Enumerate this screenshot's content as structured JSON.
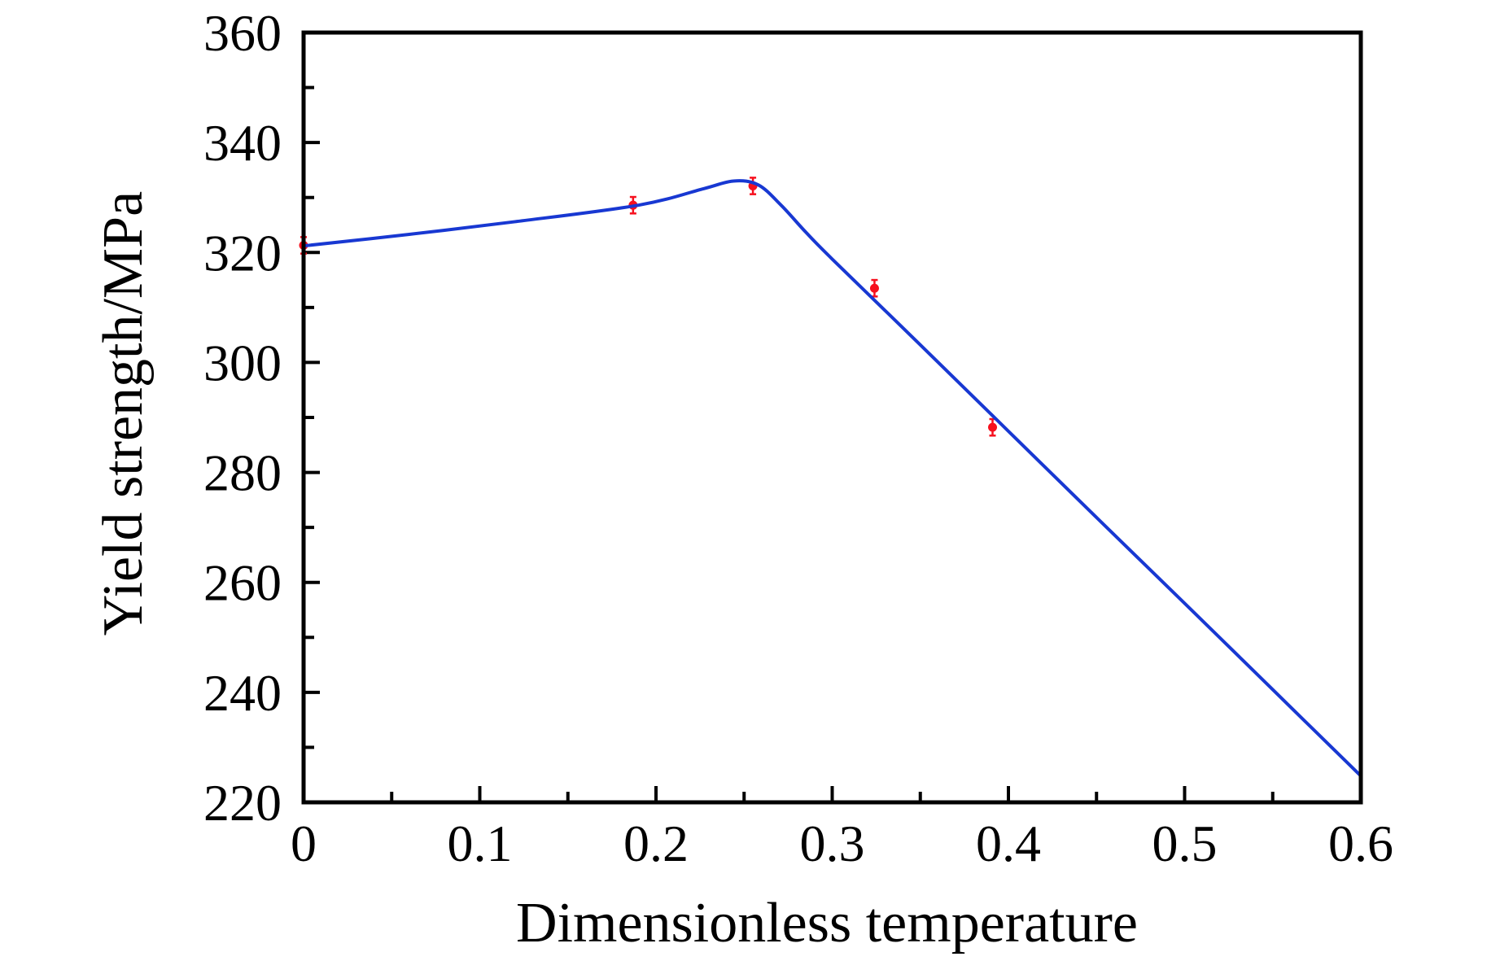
{
  "chart_data": {
    "type": "line",
    "title": "",
    "xlabel": "Dimensionless temperature",
    "ylabel": "Yield strength/MPa",
    "xlim": [
      0,
      0.6
    ],
    "ylim": [
      220,
      360
    ],
    "x_major_ticks": [
      0,
      0.1,
      0.2,
      0.3,
      0.4,
      0.5,
      0.6
    ],
    "x_tick_labels": [
      "0",
      "0.1",
      "0.2",
      "0.3",
      "0.4",
      "0.5",
      "0.6"
    ],
    "x_minor_ticks": [
      0.05,
      0.15,
      0.25,
      0.35,
      0.45,
      0.55
    ],
    "y_major_ticks": [
      220,
      240,
      260,
      280,
      300,
      320,
      340,
      360
    ],
    "y_tick_labels": [
      "220",
      "240",
      "260",
      "280",
      "300",
      "320",
      "340",
      "360"
    ],
    "y_minor_ticks": [
      230,
      250,
      270,
      290,
      310,
      330,
      350
    ],
    "grid": false,
    "legend_position": "none",
    "frame": "full-box",
    "tick_direction": "in",
    "axis_color": "#000000",
    "background_color": "#ffffff",
    "series": [
      {
        "name": "fitted-curve",
        "type": "line",
        "color": "#1838d2",
        "stroke_width": 4,
        "points": [
          [
            0.0,
            321.2
          ],
          [
            0.06,
            323.3
          ],
          [
            0.12,
            325.6
          ],
          [
            0.19,
            328.6
          ],
          [
            0.227,
            331.6
          ],
          [
            0.244,
            333.0
          ],
          [
            0.258,
            332.3
          ],
          [
            0.271,
            328.6
          ],
          [
            0.285,
            323.7
          ],
          [
            0.3,
            318.8
          ],
          [
            0.35,
            303.2
          ],
          [
            0.4,
            287.5
          ],
          [
            0.45,
            271.8
          ],
          [
            0.5,
            256.2
          ],
          [
            0.55,
            240.5
          ],
          [
            0.6,
            224.8
          ]
        ]
      },
      {
        "name": "experimental-points",
        "type": "scatter",
        "color": "#f6101e",
        "marker": "circle-with-error-bars",
        "error_bar_half_mpa": 1.5,
        "points": [
          [
            0.0,
            321.3
          ],
          [
            0.187,
            328.6
          ],
          [
            0.255,
            332.1
          ],
          [
            0.324,
            313.5
          ],
          [
            0.391,
            288.2
          ]
        ]
      }
    ]
  }
}
